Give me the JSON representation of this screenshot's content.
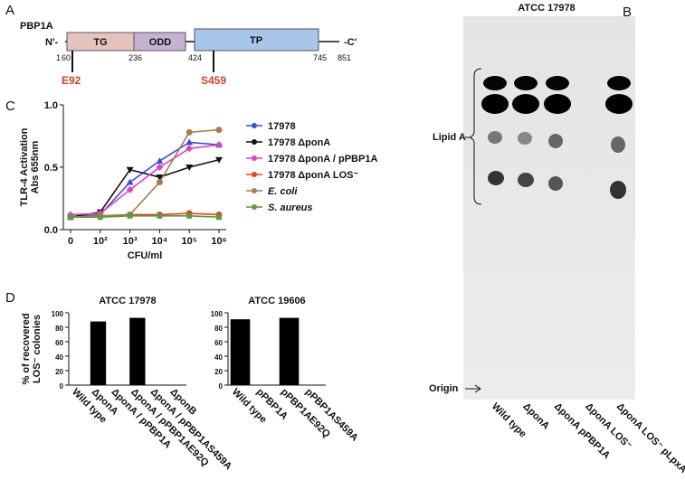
{
  "panel_labels": [
    "A",
    "B",
    "C",
    "D"
  ],
  "panel_a": {
    "title": "PBP1A",
    "n_term": "N'-",
    "c_term": "-C'",
    "domains": [
      "TG",
      "ODD",
      "TP"
    ],
    "positions": [
      "1",
      "60",
      "236",
      "424",
      "745",
      "851"
    ],
    "mutations": [
      "E92",
      "S459"
    ]
  },
  "panel_b": {
    "title": "ATCC 17978",
    "bracket_label": "Lipid A",
    "origin_label": "Origin",
    "lanes": [
      "Wild type",
      "ΔponA",
      "ΔponA pPBP1A",
      "ΔponA LOS⁻",
      "ΔponA LOS⁻ pLpxA"
    ]
  },
  "chart_data": [
    {
      "type": "line",
      "ylabel": [
        "TLR-4 Activation",
        "Abs 655nm"
      ],
      "xlabel": "CFU/ml",
      "categories": [
        "0",
        "10²",
        "10³",
        "10⁴",
        "10⁵",
        "10⁶"
      ],
      "ylim": [
        0,
        1
      ],
      "yticks": [
        {
          "value": 0,
          "label": "0.0"
        },
        {
          "value": 0.5,
          "label": "0.5"
        },
        {
          "value": 1,
          "label": "1.0"
        }
      ],
      "series": [
        {
          "name": "17978",
          "color": "#3a4fe0",
          "marker": "triangle",
          "values": [
            0.1,
            0.12,
            0.38,
            0.55,
            0.7,
            0.68
          ]
        },
        {
          "name": "17978 ΔponA",
          "color": "#111111",
          "marker": "down",
          "values": [
            0.1,
            0.14,
            0.48,
            0.42,
            0.5,
            0.56
          ]
        },
        {
          "name": "17978 ΔponA / pPBP1A",
          "color": "#e040c8",
          "marker": "diamond",
          "values": [
            0.12,
            0.13,
            0.32,
            0.5,
            0.65,
            0.68
          ]
        },
        {
          "name": "17978 ΔponA LOS⁻",
          "color": "#e8401c",
          "marker": "circle",
          "values": [
            0.1,
            0.11,
            0.12,
            0.12,
            0.13,
            0.12
          ]
        },
        {
          "name": "E. coli",
          "color": "#a87c4a",
          "marker": "circle",
          "values": [
            0.1,
            0.11,
            0.12,
            0.38,
            0.78,
            0.8
          ]
        },
        {
          "name": "S. aureus",
          "color": "#5a9a3a",
          "marker": "square",
          "values": [
            0.1,
            0.1,
            0.11,
            0.11,
            0.11,
            0.1
          ]
        }
      ]
    },
    {
      "type": "bar",
      "title": "ATCC 17978",
      "ylabel": [
        "% of recovered",
        "LOS⁻ colonies"
      ],
      "color": "#000000",
      "categories": [
        "Wild type",
        "ΔponA",
        "ΔponA / pPBP1A",
        "ΔponA / pPBP1AE92Q",
        "ΔponA / pPBP1AS459A",
        "ΔponB"
      ],
      "values": [
        0,
        88,
        0,
        93,
        0,
        0
      ],
      "ylim": [
        0,
        100
      ],
      "yticks": [
        0,
        20,
        40,
        60,
        80,
        100
      ]
    },
    {
      "type": "bar",
      "title": "ATCC 19606",
      "color": "#000000",
      "categories": [
        "Wild type",
        "pPBP1A",
        "pPBP1AE92Q",
        "pPBP1AS459A"
      ],
      "values": [
        91,
        0,
        93,
        0
      ],
      "ylim": [
        0,
        100
      ],
      "yticks": [
        0,
        20,
        40,
        60,
        80,
        100
      ]
    }
  ]
}
